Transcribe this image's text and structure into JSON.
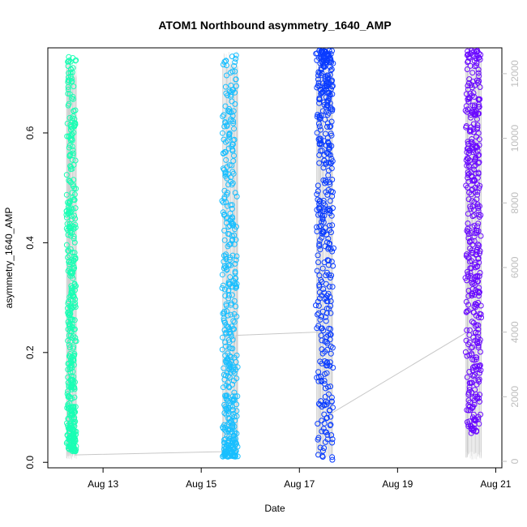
{
  "chart_data": {
    "type": "scatter",
    "title": "ATOM1 Northbound asymmetry_1640_AMP",
    "xlabel": "Date",
    "ylabel": "asymmetry_1640_AMP",
    "x_axis": {
      "kind": "date",
      "range": [
        "2024-08-11T21:00",
        "2024-08-21T03:00"
      ],
      "ticks": [
        "2024-08-13",
        "2024-08-15",
        "2024-08-17",
        "2024-08-19",
        "2024-08-21"
      ],
      "tick_labels": [
        "Aug 13",
        "Aug 15",
        "Aug 17",
        "Aug 19",
        "Aug 21"
      ]
    },
    "y_axis": {
      "range": [
        -0.01,
        0.755
      ],
      "ticks": [
        0.0,
        0.2,
        0.4,
        0.6
      ],
      "tick_labels": [
        "0.0",
        "0.2",
        "0.4",
        "0.6"
      ]
    },
    "y2_axis": {
      "range": [
        -200,
        12800
      ],
      "ticks": [
        0,
        2000,
        4000,
        6000,
        8000,
        10000,
        12000
      ],
      "tick_labels": [
        "0",
        "2000",
        "4000",
        "6000",
        "8000",
        "10000",
        "12000"
      ],
      "color": "#bdbdbd"
    },
    "grid": false,
    "legend": "none",
    "clusters": [
      {
        "start": "2024-08-12T06:00",
        "end": "2024-08-12T11:00",
        "color": "#19ffb4",
        "y_min": 0.02,
        "y_max": 0.74,
        "density": "bottom-heavy"
      },
      {
        "start": "2024-08-15T10:00",
        "end": "2024-08-15T18:00",
        "color": "#19bfff",
        "y_min": 0.01,
        "y_max": 0.75,
        "density": "bottom-heavy"
      },
      {
        "start": "2024-08-17T08:00",
        "end": "2024-08-17T17:00",
        "color": "#0a3cff",
        "y_min": 0.0,
        "y_max": 0.75,
        "density": "top-heavy"
      },
      {
        "start": "2024-08-20T09:00",
        "end": "2024-08-20T17:00",
        "color": "#6a0aff",
        "y_min": 0.05,
        "y_max": 0.75,
        "density": "uniform"
      }
    ],
    "secondary_line": {
      "color": "#c8c8c8",
      "points": [
        {
          "x": "2024-08-12T10:00",
          "y2": 200
        },
        {
          "x": "2024-08-15T10:00",
          "y2": 300
        },
        {
          "x": "2024-08-15T12:00",
          "y2": 2200
        },
        {
          "x": "2024-08-15T17:00",
          "y2": 3900
        },
        {
          "x": "2024-08-17T09:00",
          "y2": 4000
        },
        {
          "x": "2024-08-17T16:00",
          "y2": 1500
        },
        {
          "x": "2024-08-20T10:00",
          "y2": 4000
        },
        {
          "x": "2024-08-20T16:00",
          "y2": 12200
        }
      ]
    }
  }
}
